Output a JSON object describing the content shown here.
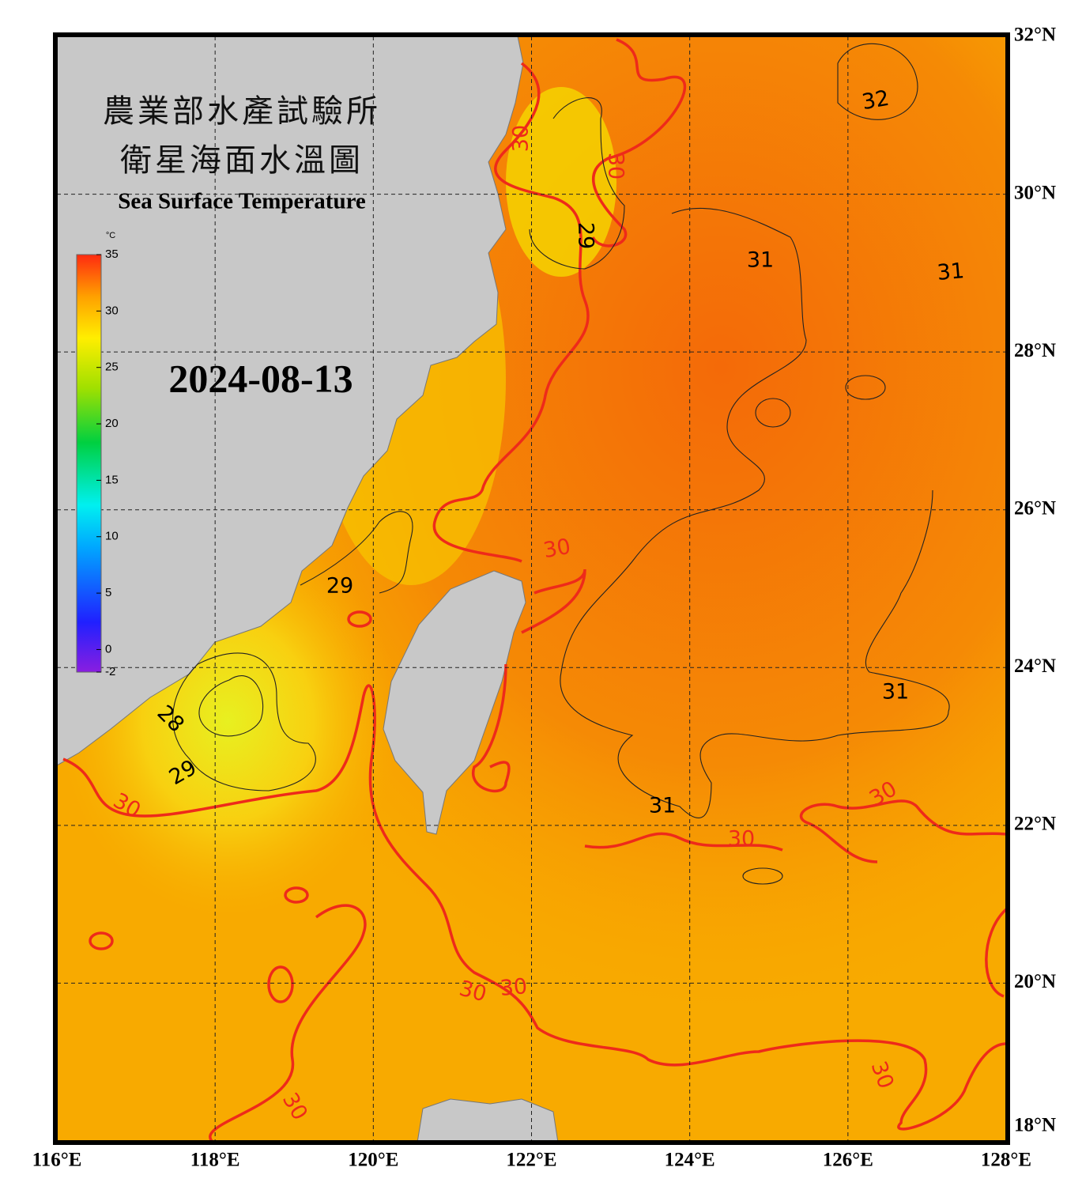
{
  "map": {
    "title_zh": [
      "農業部水產試驗所",
      "衛星海面水溫圖"
    ],
    "title_en": "Sea Surface Temperature",
    "date": "2024-08-13",
    "colorbar": {
      "unit": "°C",
      "range": [
        -2,
        35
      ],
      "ticks": [
        35,
        30,
        25,
        20,
        15,
        10,
        5,
        0,
        -2
      ]
    },
    "lon_range": [
      116,
      128
    ],
    "lat_range": [
      18,
      32
    ],
    "lon_ticks": [
      {
        "value": 116,
        "label": "116°E"
      },
      {
        "value": 118,
        "label": "118°E"
      },
      {
        "value": 120,
        "label": "120°E"
      },
      {
        "value": 122,
        "label": "122°E"
      },
      {
        "value": 124,
        "label": "124°E"
      },
      {
        "value": 126,
        "label": "126°E"
      },
      {
        "value": 128,
        "label": "128°E"
      }
    ],
    "lat_ticks": [
      {
        "value": 32,
        "label": "32°N"
      },
      {
        "value": 30,
        "label": "30°N"
      },
      {
        "value": 28,
        "label": "28°N"
      },
      {
        "value": 26,
        "label": "26°N"
      },
      {
        "value": 24,
        "label": "24°N"
      },
      {
        "value": 22,
        "label": "22°N"
      },
      {
        "value": 20,
        "label": "20°N"
      },
      {
        "value": 18,
        "label": "18°N"
      }
    ],
    "contour_labels": [
      32,
      31,
      31,
      31,
      31,
      29,
      29,
      28,
      29,
      30,
      30,
      30,
      30,
      30,
      30,
      30,
      30,
      30,
      30
    ]
  }
}
